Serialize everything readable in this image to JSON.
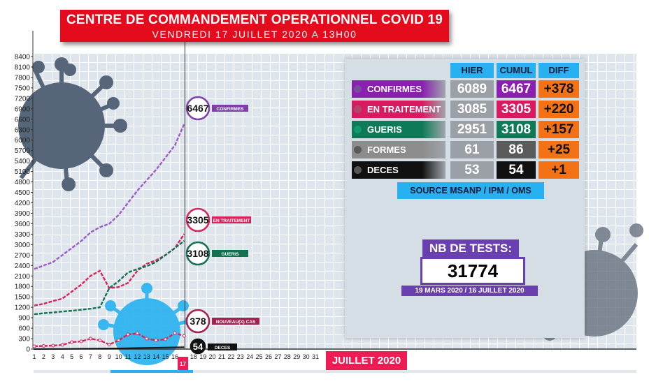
{
  "header": {
    "title": "CENTRE DE COMMANDEMENT OPERATIONNEL COVID 19",
    "subtitle": "VENDREDI 17 JUILLET 2020 A 13H00"
  },
  "table": {
    "col_hier": "HIER",
    "col_cumul": "CUMUL",
    "col_diff": "DIFF",
    "rows": [
      {
        "label": "CONFIRMES",
        "hier": "6089",
        "cumul": "6467",
        "diff": "+378",
        "color": "#8a1fb0",
        "dot": "#7a4a9b"
      },
      {
        "label": "EN TRAITEMENT",
        "hier": "3085",
        "cumul": "3305",
        "diff": "+220",
        "color": "#d81b60",
        "dot": "#b3456a"
      },
      {
        "label": "GUERIS",
        "hier": "2951",
        "cumul": "3108",
        "diff": "+157",
        "color": "#0e7a57",
        "dot": "#0e9a6a"
      },
      {
        "label": "FORMES GRAVES",
        "hier": "61",
        "cumul": "86",
        "diff": "+25",
        "color": "#8c8c8c",
        "dot": "#5a5a5a"
      },
      {
        "label": "DECES",
        "hier": "53",
        "cumul": "54",
        "diff": "+1",
        "color": "#111111",
        "dot": "#555555"
      }
    ],
    "diff_color": "#f47216",
    "hier_bg": "#9aa0a6",
    "source": "SOURCE MSANP / IPM / OMS"
  },
  "tests": {
    "title": "NB DE TESTS:",
    "value": "31774",
    "period": "19 MARS 2020 / 16 JUILLET 2020"
  },
  "month_label": "JUILLET 2020",
  "chart_data": {
    "type": "line",
    "x": [
      1,
      2,
      3,
      4,
      5,
      6,
      7,
      8,
      9,
      10,
      11,
      12,
      13,
      14,
      15,
      16,
      17
    ],
    "x_ticks": [
      1,
      2,
      3,
      4,
      5,
      6,
      7,
      8,
      9,
      10,
      11,
      12,
      13,
      14,
      15,
      16,
      17,
      18,
      19,
      20,
      21,
      22,
      23,
      24,
      25,
      26,
      27,
      28,
      29,
      30,
      31
    ],
    "y_ticks": [
      0,
      300,
      600,
      900,
      1200,
      1500,
      1800,
      2100,
      2400,
      2700,
      3000,
      3300,
      3600,
      3900,
      4200,
      4500,
      4800,
      5100,
      5400,
      5700,
      6000,
      6300,
      6600,
      6900,
      7200,
      7500,
      7800,
      8100,
      8400
    ],
    "ylim": [
      0,
      8400
    ],
    "highlight_day": "17",
    "series": [
      {
        "name": "CONFIRMES",
        "color": "#9a5cc8",
        "values": [
          2300,
          2400,
          2500,
          2700,
          2900,
          3100,
          3350,
          3500,
          3600,
          3850,
          4200,
          4550,
          4850,
          5150,
          5500,
          5850,
          6467
        ],
        "end_label": "6467"
      },
      {
        "name": "EN TRAITEMENT",
        "color": "#d8235a",
        "values": [
          1250,
          1300,
          1380,
          1450,
          1650,
          1850,
          2100,
          2250,
          1750,
          1780,
          1900,
          2250,
          2450,
          2550,
          2700,
          2900,
          3305
        ],
        "end_label": "3305"
      },
      {
        "name": "GUERIS",
        "color": "#11704f",
        "values": [
          1000,
          1030,
          1050,
          1080,
          1100,
          1130,
          1160,
          1200,
          1750,
          1950,
          2200,
          2300,
          2380,
          2500,
          2700,
          2900,
          3108
        ],
        "end_label": "3108"
      },
      {
        "name": "NOUVEAU(X) CAS",
        "color": "#d8235a",
        "values": [
          80,
          90,
          100,
          120,
          200,
          220,
          300,
          250,
          130,
          250,
          420,
          450,
          300,
          250,
          280,
          460,
          378
        ],
        "end_label": "378"
      },
      {
        "name": "DECES",
        "color": "#111111",
        "values": [
          0,
          2,
          5,
          6,
          8,
          10,
          12,
          15,
          18,
          20,
          25,
          30,
          35,
          40,
          45,
          50,
          54
        ],
        "end_label": "54"
      }
    ]
  }
}
